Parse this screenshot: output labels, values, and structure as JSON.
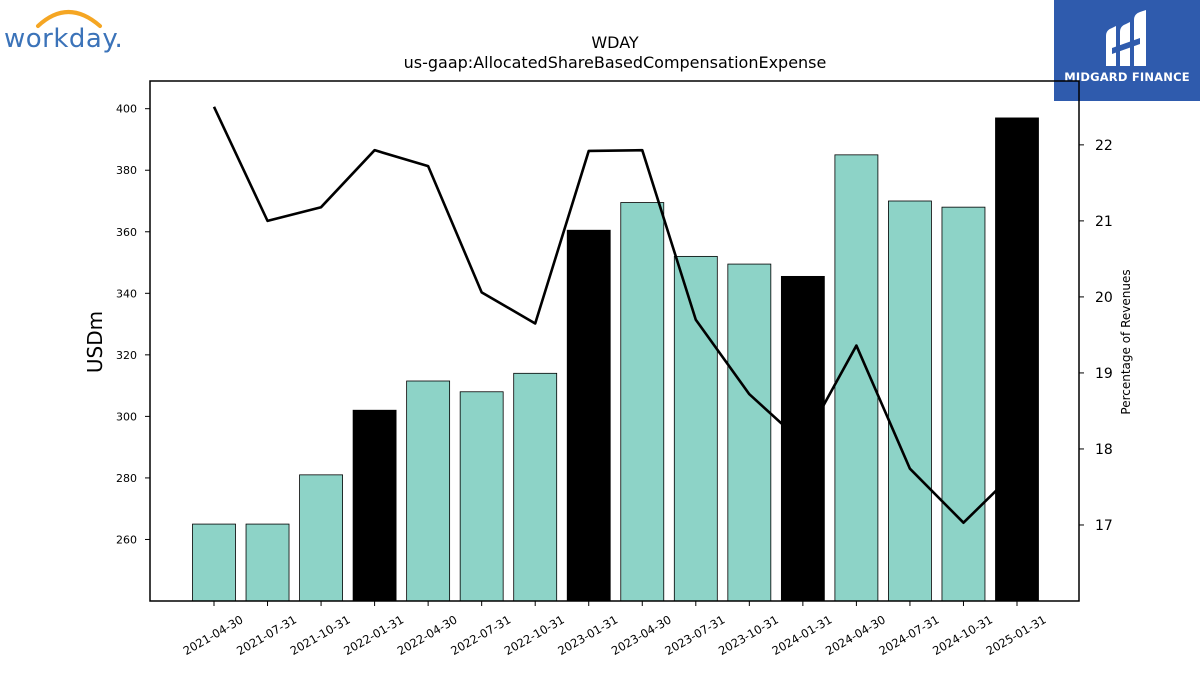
{
  "logos": {
    "left_text": "workday.",
    "right_text": "MIDGARD FINANCE"
  },
  "colors": {
    "bar_default": "#8dd3c7",
    "bar_highlight": "#000000",
    "line": "#000000",
    "workday_blue": "#3b73b9",
    "workday_orange": "#f5a623",
    "midgard_bg": "#2f5bad"
  },
  "chart_data": {
    "type": "bar",
    "title": "WDAY",
    "subtitle": "us-gaap:AllocatedShareBasedCompensationExpense",
    "ylabel": "USDm",
    "y2label": "Percentage of Revenues",
    "categories": [
      "2021-04-30",
      "2021-07-31",
      "2021-10-31",
      "2022-01-31",
      "2022-04-30",
      "2022-07-31",
      "2022-10-31",
      "2023-01-31",
      "2023-04-30",
      "2023-07-31",
      "2023-10-31",
      "2024-01-31",
      "2024-04-30",
      "2024-07-31",
      "2024-10-31",
      "2025-01-31"
    ],
    "values": [
      265,
      265,
      281,
      302,
      311.5,
      308,
      314,
      360.5,
      369.5,
      352,
      349.5,
      345.5,
      385,
      370,
      368,
      397
    ],
    "highlight": [
      false,
      false,
      false,
      true,
      false,
      false,
      false,
      true,
      false,
      false,
      false,
      true,
      false,
      false,
      false,
      true
    ],
    "line_values": [
      22.5,
      21.0,
      21.18,
      21.93,
      21.72,
      20.06,
      19.65,
      21.92,
      21.93,
      19.7,
      18.72,
      18.08,
      19.36,
      17.74,
      17.03,
      17.72
    ],
    "ylim": [
      240,
      409
    ],
    "yticks": [
      260,
      280,
      300,
      320,
      340,
      360,
      380,
      400
    ],
    "y2lim": [
      16.0,
      22.84
    ],
    "y2ticks": [
      17,
      18,
      19,
      20,
      21,
      22
    ],
    "grid": false
  }
}
